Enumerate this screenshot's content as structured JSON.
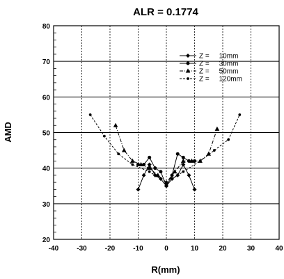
{
  "chart_data": {
    "type": "line",
    "title": "ALR = 0.1774",
    "xlabel": "R(mm)",
    "ylabel": "AMD",
    "xlim": [
      -40,
      40
    ],
    "ylim": [
      20,
      80
    ],
    "xticks": [
      "-40",
      "-30",
      "-20",
      "-10",
      "0",
      "10",
      "20",
      "30",
      "40"
    ],
    "yticks": [
      "20",
      "30",
      "40",
      "50",
      "60",
      "70",
      "80"
    ],
    "grid": true,
    "legend_position": "top-right",
    "series": [
      {
        "name": "Z =     10mm",
        "marker": "diamond",
        "dash": "solid",
        "x": [
          -10,
          -8,
          -6,
          -4,
          -2,
          0,
          2,
          4,
          6,
          8,
          10
        ],
        "y": [
          34,
          38,
          41,
          38,
          37,
          35,
          37,
          38,
          41,
          38,
          34
        ]
      },
      {
        "name": "Z =     30mm",
        "marker": "circle",
        "dash": "solid",
        "x": [
          -10,
          -8,
          -6,
          -4,
          -2,
          0,
          2,
          4,
          6,
          8,
          10
        ],
        "y": [
          41,
          41,
          43,
          40,
          39,
          35,
          38,
          44,
          43,
          42,
          42
        ]
      },
      {
        "name": "Z =     50mm",
        "marker": "triangle",
        "dash": "dashdot",
        "x": [
          -18,
          -15,
          -12,
          -9,
          -6,
          -3,
          0,
          3,
          6,
          9,
          12,
          15,
          18
        ],
        "y": [
          52,
          45,
          42,
          41,
          40,
          38,
          36,
          39,
          42,
          42,
          42,
          44,
          51
        ]
      },
      {
        "name": "Z =     120mm",
        "marker": "dot",
        "dash": "dashed",
        "x": [
          -27,
          -22,
          -17,
          -12,
          -6,
          -2,
          0,
          2,
          6,
          12,
          17,
          22,
          26
        ],
        "y": [
          55,
          49,
          44,
          41,
          39,
          37,
          35,
          37,
          39,
          42,
          45,
          48,
          55
        ]
      }
    ]
  }
}
